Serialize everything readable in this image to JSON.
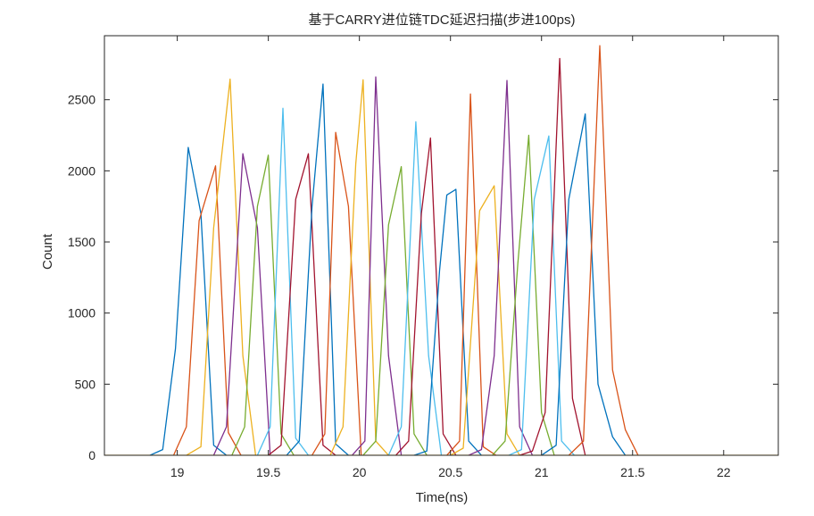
{
  "chart_data": {
    "type": "line",
    "title": "基于CARRY进位链TDC延迟扫描(步进100ps)",
    "xlabel": "Time(ns)",
    "ylabel": "Count",
    "xlim": [
      18.6,
      22.3
    ],
    "ylim": [
      0,
      2950
    ],
    "xticks": [
      19,
      19.5,
      20,
      20.5,
      21,
      21.5,
      22
    ],
    "yticks": [
      0,
      500,
      1000,
      1500,
      2000,
      2500
    ],
    "xtick_labels": [
      "19",
      "19.5",
      "20",
      "20.5",
      "21",
      "21.5",
      "22"
    ],
    "ytick_labels": [
      "0",
      "500",
      "1000",
      "1500",
      "2000",
      "2500"
    ],
    "grid": false,
    "legend": "none",
    "colors": [
      "#0072BD",
      "#D95319",
      "#EDB120",
      "#7E2F8E",
      "#77AC30",
      "#4DBEEE",
      "#A2142F"
    ],
    "x_range": [
      18.6,
      22.3
    ],
    "series": [
      {
        "x": [
          18.85,
          18.92,
          18.99,
          19.06,
          19.13,
          19.2,
          19.27
        ],
        "values": [
          0,
          40,
          750,
          2165,
          1700,
          70,
          0
        ]
      },
      {
        "x": [
          18.98,
          19.05,
          19.12,
          19.21,
          19.28,
          19.35
        ],
        "values": [
          0,
          200,
          1650,
          2035,
          160,
          0
        ]
      },
      {
        "x": [
          19.05,
          19.13,
          19.2,
          19.29,
          19.36,
          19.43
        ],
        "values": [
          0,
          60,
          1600,
          2645,
          700,
          0
        ]
      },
      {
        "x": [
          19.2,
          19.27,
          19.36,
          19.44,
          19.51
        ],
        "values": [
          0,
          200,
          2120,
          1600,
          0
        ]
      },
      {
        "x": [
          19.3,
          19.37,
          19.44,
          19.5,
          19.57,
          19.64
        ],
        "values": [
          0,
          200,
          1750,
          2110,
          150,
          0
        ]
      },
      {
        "x": [
          19.44,
          19.51,
          19.58,
          19.65,
          19.72
        ],
        "values": [
          0,
          200,
          2440,
          120,
          0
        ]
      },
      {
        "x": [
          19.5,
          19.57,
          19.65,
          19.72,
          19.8,
          19.87
        ],
        "values": [
          0,
          70,
          1800,
          2120,
          70,
          0
        ]
      },
      {
        "x": [
          19.6,
          19.67,
          19.74,
          19.8,
          19.87,
          19.94
        ],
        "values": [
          0,
          100,
          1750,
          2610,
          80,
          0
        ]
      },
      {
        "x": [
          19.74,
          19.81,
          19.87,
          19.94,
          20.01
        ],
        "values": [
          0,
          150,
          2270,
          1750,
          0
        ]
      },
      {
        "x": [
          19.84,
          19.91,
          19.98,
          20.02,
          20.09,
          20.16
        ],
        "values": [
          0,
          200,
          2050,
          2640,
          100,
          0
        ]
      },
      {
        "x": [
          19.96,
          20.03,
          20.09,
          20.16,
          20.23
        ],
        "values": [
          0,
          100,
          2660,
          700,
          0
        ]
      },
      {
        "x": [
          20.02,
          20.09,
          20.16,
          20.23,
          20.3,
          20.37
        ],
        "values": [
          0,
          100,
          1620,
          2030,
          150,
          0
        ]
      },
      {
        "x": [
          20.16,
          20.23,
          20.31,
          20.38,
          20.45
        ],
        "values": [
          0,
          200,
          2345,
          700,
          0
        ]
      },
      {
        "x": [
          20.2,
          20.27,
          20.34,
          20.39,
          20.46,
          20.53
        ],
        "values": [
          0,
          100,
          1700,
          2230,
          150,
          0
        ]
      },
      {
        "x": [
          20.3,
          20.37,
          20.44,
          20.48,
          20.53,
          20.6,
          20.67
        ],
        "values": [
          0,
          30,
          1300,
          1830,
          1870,
          100,
          0
        ]
      },
      {
        "x": [
          20.48,
          20.55,
          20.61,
          20.68,
          20.75
        ],
        "values": [
          0,
          100,
          2540,
          60,
          0
        ]
      },
      {
        "x": [
          20.5,
          20.57,
          20.66,
          20.74,
          20.81,
          20.88
        ],
        "values": [
          0,
          50,
          1720,
          1895,
          150,
          0
        ]
      },
      {
        "x": [
          20.6,
          20.67,
          20.74,
          20.81,
          20.88,
          20.95
        ],
        "values": [
          0,
          40,
          700,
          2635,
          200,
          0
        ]
      },
      {
        "x": [
          20.73,
          20.8,
          20.87,
          20.93,
          21.0,
          21.07
        ],
        "values": [
          0,
          100,
          1350,
          2250,
          300,
          0
        ]
      },
      {
        "x": [
          20.82,
          20.89,
          20.96,
          21.04,
          21.11,
          21.18
        ],
        "values": [
          0,
          40,
          1800,
          2245,
          100,
          0
        ]
      },
      {
        "x": [
          20.88,
          20.95,
          21.02,
          21.1,
          21.17,
          21.24
        ],
        "values": [
          0,
          30,
          300,
          2790,
          400,
          0
        ]
      },
      {
        "x": [
          21.0,
          21.08,
          21.15,
          21.24,
          21.31,
          21.39,
          21.46
        ],
        "values": [
          0,
          70,
          1800,
          2400,
          500,
          130,
          0
        ]
      },
      {
        "x": [
          21.15,
          21.23,
          21.32,
          21.39,
          21.46,
          21.53
        ],
        "values": [
          0,
          100,
          2880,
          600,
          180,
          0
        ]
      },
      {
        "x": [
          18.6,
          22.3
        ],
        "values": [
          0,
          0
        ]
      }
    ]
  }
}
